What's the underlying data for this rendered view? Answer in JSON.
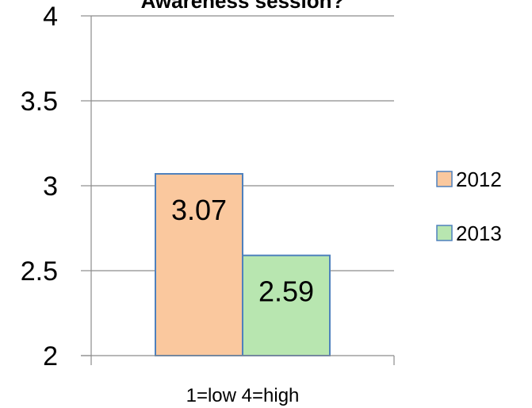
{
  "chart_data": {
    "type": "bar",
    "title": "Awareness session?",
    "xlabel": "1=low 4=high",
    "ylabel": "",
    "ylim": [
      2,
      4
    ],
    "yticks": [
      "2",
      "2.5",
      "3",
      "3.5",
      "4"
    ],
    "grid": true,
    "legend_position": "right",
    "series": [
      {
        "name": "2012",
        "values": [
          3.07
        ],
        "label": "3.07",
        "color": "#FAC89E",
        "edge": "#4F81BD"
      },
      {
        "name": "2013",
        "values": [
          2.59
        ],
        "label": "2.59",
        "color": "#B8E6B0",
        "edge": "#4F81BD"
      }
    ]
  }
}
